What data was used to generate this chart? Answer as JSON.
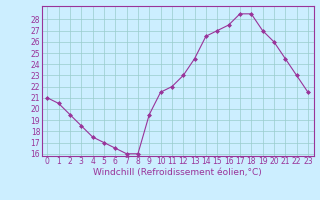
{
  "x": [
    0,
    1,
    2,
    3,
    4,
    5,
    6,
    7,
    8,
    9,
    10,
    11,
    12,
    13,
    14,
    15,
    16,
    17,
    18,
    19,
    20,
    21,
    22,
    23
  ],
  "y": [
    21,
    20.5,
    19.5,
    18.5,
    17.5,
    17,
    16.5,
    16,
    16,
    19.5,
    21.5,
    22,
    23,
    24.5,
    26.5,
    27,
    27.5,
    28.5,
    28.5,
    27,
    26,
    24.5,
    23,
    21.5
  ],
  "xlabel": "Windchill (Refroidissement éolien,°C)",
  "ylim_min": 15.8,
  "ylim_max": 29.2,
  "xlim_min": -0.5,
  "xlim_max": 23.5,
  "yticks": [
    16,
    17,
    18,
    19,
    20,
    21,
    22,
    23,
    24,
    25,
    26,
    27,
    28
  ],
  "xticks": [
    0,
    1,
    2,
    3,
    4,
    5,
    6,
    7,
    8,
    9,
    10,
    11,
    12,
    13,
    14,
    15,
    16,
    17,
    18,
    19,
    20,
    21,
    22,
    23
  ],
  "line_color": "#993399",
  "bg_color": "#cceeff",
  "grid_color": "#99cccc",
  "text_color": "#993399",
  "spine_color": "#993399",
  "tick_label_fontsize": 5.5,
  "xlabel_fontsize": 6.5
}
